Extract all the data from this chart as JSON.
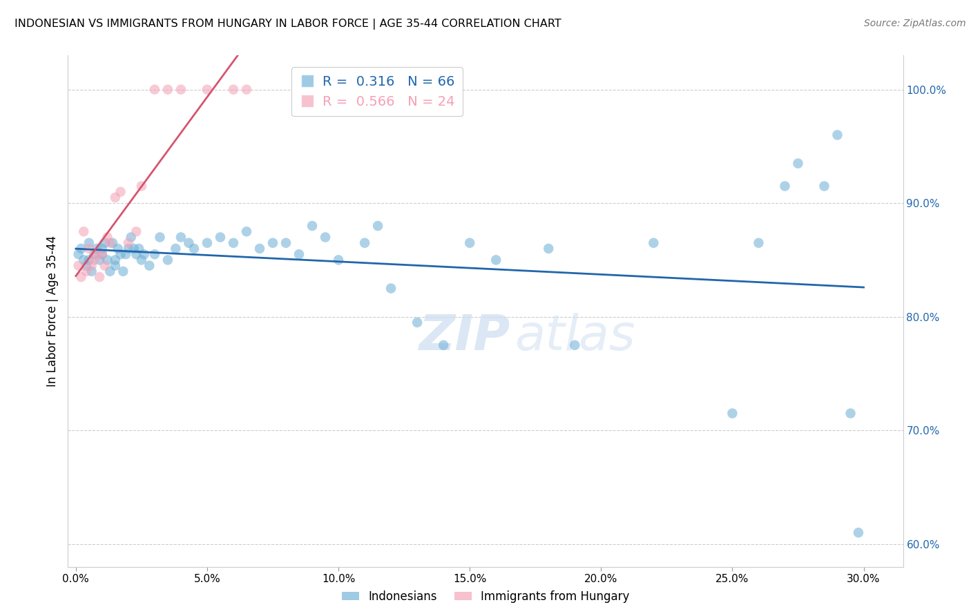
{
  "title": "INDONESIAN VS IMMIGRANTS FROM HUNGARY IN LABOR FORCE | AGE 35-44 CORRELATION CHART",
  "source": "Source: ZipAtlas.com",
  "xlabel_vals": [
    0.0,
    5.0,
    10.0,
    15.0,
    20.0,
    25.0,
    30.0
  ],
  "ylabel_vals": [
    60.0,
    70.0,
    80.0,
    90.0,
    100.0
  ],
  "xmin": -0.3,
  "xmax": 31.5,
  "ymin": 58.0,
  "ymax": 103.0,
  "ylabel": "In Labor Force | Age 35-44",
  "legend_blue_r": "0.316",
  "legend_blue_n": "66",
  "legend_pink_r": "0.566",
  "legend_pink_n": "24",
  "legend_label_blue": "Indonesians",
  "legend_label_pink": "Immigrants from Hungary",
  "blue_color": "#6baed6",
  "pink_color": "#f4a0b5",
  "trendline_blue": "#2166ac",
  "trendline_pink": "#d6546e",
  "watermark_zip": "ZIP",
  "watermark_atlas": "atlas",
  "indonesians_x": [
    0.1,
    0.2,
    0.3,
    0.4,
    0.5,
    0.5,
    0.6,
    0.7,
    0.8,
    0.9,
    1.0,
    1.0,
    1.1,
    1.2,
    1.3,
    1.4,
    1.5,
    1.5,
    1.6,
    1.7,
    1.8,
    1.9,
    2.0,
    2.1,
    2.2,
    2.3,
    2.4,
    2.5,
    2.6,
    2.8,
    3.0,
    3.2,
    3.5,
    3.8,
    4.0,
    4.3,
    4.5,
    5.0,
    5.5,
    6.0,
    6.5,
    7.0,
    7.5,
    8.0,
    8.5,
    9.0,
    9.5,
    10.0,
    11.0,
    11.5,
    12.0,
    13.0,
    14.0,
    15.0,
    16.0,
    18.0,
    19.0,
    22.0,
    25.0,
    26.0,
    27.0,
    27.5,
    28.5,
    29.0,
    29.5,
    29.8
  ],
  "indonesians_y": [
    85.5,
    86.0,
    85.0,
    84.5,
    85.0,
    86.5,
    84.0,
    85.5,
    86.0,
    85.0,
    85.5,
    86.0,
    86.5,
    85.0,
    84.0,
    86.5,
    84.5,
    85.0,
    86.0,
    85.5,
    84.0,
    85.5,
    86.0,
    87.0,
    86.0,
    85.5,
    86.0,
    85.0,
    85.5,
    84.5,
    85.5,
    87.0,
    85.0,
    86.0,
    87.0,
    86.5,
    86.0,
    86.5,
    87.0,
    86.5,
    87.5,
    86.0,
    86.5,
    86.5,
    85.5,
    88.0,
    87.0,
    85.0,
    86.5,
    88.0,
    82.5,
    79.5,
    77.5,
    86.5,
    85.0,
    86.0,
    77.5,
    86.5,
    71.5,
    86.5,
    91.5,
    93.5,
    91.5,
    96.0,
    71.5,
    61.0
  ],
  "hungary_x": [
    0.1,
    0.2,
    0.3,
    0.4,
    0.5,
    0.6,
    0.7,
    0.8,
    0.9,
    1.0,
    1.1,
    1.2,
    1.3,
    1.5,
    1.7,
    2.0,
    2.3,
    2.5,
    3.0,
    3.5,
    4.0,
    5.0,
    6.0,
    6.5
  ],
  "hungary_y": [
    84.5,
    83.5,
    87.5,
    84.0,
    86.0,
    84.5,
    85.0,
    85.5,
    83.5,
    85.5,
    84.5,
    87.0,
    86.5,
    90.5,
    91.0,
    86.5,
    87.5,
    91.5,
    100.0,
    100.0,
    100.0,
    100.0,
    100.0,
    100.0
  ],
  "grid_color": "#cccccc",
  "background_color": "#ffffff"
}
